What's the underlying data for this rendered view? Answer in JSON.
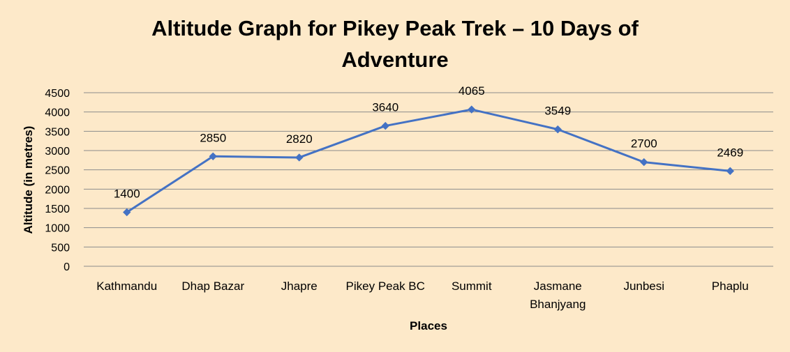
{
  "chart_data": {
    "type": "line",
    "title_lines": [
      "Altitude Graph for Pikey Peak Trek – 10 Days of",
      "Adventure"
    ],
    "xlabel": "Places",
    "ylabel": "Altitude (in metres)",
    "ylim": [
      0,
      4500
    ],
    "ytick_step": 500,
    "yticks": [
      "0",
      "500",
      "1000",
      "1500",
      "2000",
      "2500",
      "3000",
      "3500",
      "4000",
      "4500"
    ],
    "grid": true,
    "categories": [
      [
        "Kathmandu"
      ],
      [
        "Dhap Bazar"
      ],
      [
        "Jhapre"
      ],
      [
        "Pikey Peak BC"
      ],
      [
        "Summit"
      ],
      [
        "Jasmane",
        "Bhanjyang"
      ],
      [
        "Junbesi"
      ],
      [
        "Phaplu"
      ]
    ],
    "series": [
      {
        "values": [
          1400,
          2850,
          2820,
          3640,
          4065,
          3549,
          2700,
          2469
        ],
        "labels": [
          "1400",
          "2850",
          "2820",
          "3640",
          "4065",
          "3549",
          "2700",
          "2469"
        ],
        "color": "#4472c4",
        "marker": "diamond"
      }
    ],
    "legend": "none"
  }
}
